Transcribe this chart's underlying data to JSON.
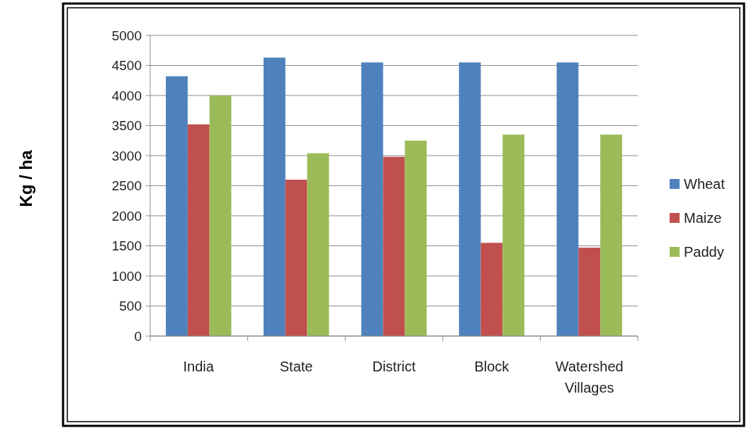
{
  "chart_data": {
    "type": "bar",
    "ylabel": "Kg / ha",
    "categories": [
      "India",
      "State",
      "District",
      "Block",
      "Watershed Villages"
    ],
    "series": [
      {
        "name": "Wheat",
        "color": "#4f81bd",
        "values": [
          4320,
          4630,
          4550,
          4550,
          4550
        ]
      },
      {
        "name": "Maize",
        "color": "#c0504d",
        "values": [
          3520,
          2600,
          2980,
          1550,
          1470
        ]
      },
      {
        "name": "Paddy",
        "color": "#9bbb59",
        "values": [
          4000,
          3040,
          3250,
          3350,
          3350
        ]
      }
    ],
    "ylim": [
      0,
      5000
    ],
    "yticks": [
      0,
      500,
      1000,
      1500,
      2000,
      2500,
      3000,
      3500,
      4000,
      4500,
      5000
    ],
    "grid": "y",
    "legend": "right"
  }
}
